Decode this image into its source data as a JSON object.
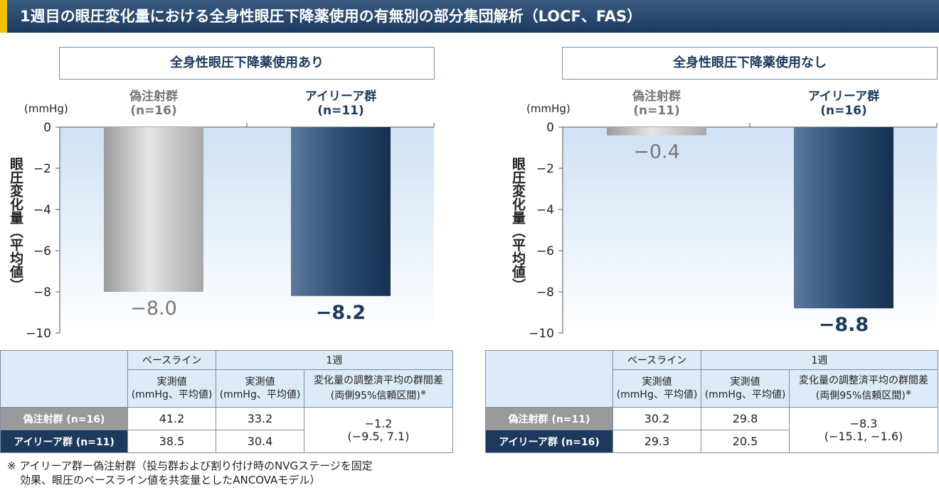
{
  "title": "1週目の眼圧変化量における全身性眼圧下降薬使用の有無別の部分集団解析（LOCF、FAS）",
  "colors": {
    "placebo": "#b8b8b8",
    "drug": "#1d3a5e",
    "title_bg": "#1d3a5e",
    "accent": "#f2c100"
  },
  "panels": [
    {
      "heading": "全身性眼圧下降薬使用あり",
      "unit": "(mmHg)",
      "ylabel": "眼圧変化量（平均値）",
      "groups": [
        {
          "name": "偽注射群",
          "n": "(n=16)",
          "label": "−8.0"
        },
        {
          "name": "アイリーア群",
          "n": "(n=11)",
          "label": "−8.2"
        }
      ],
      "table": {
        "head_baseline": "ベースライン",
        "head_week1": "1週",
        "sub_measured_1": "実測値",
        "sub_measured_2": "(mmHg、平均値)",
        "sub_diff_1": "変化量の調整済平均の群間差",
        "sub_diff_2": "(両側95%信頼区間)",
        "sub_diff_note": "※",
        "rows": [
          {
            "label": "偽注射群 (n=16)",
            "baseline": "41.2",
            "week1": "33.2"
          },
          {
            "label": "アイリーア群 (n=11)",
            "baseline": "38.5",
            "week1": "30.4"
          }
        ],
        "diff": "−1.2",
        "ci": "(−9.5, 7.1)"
      }
    },
    {
      "heading": "全身性眼圧下降薬使用なし",
      "unit": "(mmHg)",
      "ylabel": "眼圧変化量（平均値）",
      "groups": [
        {
          "name": "偽注射群",
          "n": "(n=11)",
          "label": "−0.4"
        },
        {
          "name": "アイリーア群",
          "n": "(n=16)",
          "label": "−8.8"
        }
      ],
      "table": {
        "head_baseline": "ベースライン",
        "head_week1": "1週",
        "sub_measured_1": "実測値",
        "sub_measured_2": "(mmHg、平均値)",
        "sub_diff_1": "変化量の調整済平均の群間差",
        "sub_diff_2": "(両側95%信頼区間)",
        "sub_diff_note": "※",
        "rows": [
          {
            "label": "偽注射群 (n=11)",
            "baseline": "30.2",
            "week1": "29.8"
          },
          {
            "label": "アイリーア群 (n=16)",
            "baseline": "29.3",
            "week1": "20.5"
          }
        ],
        "diff": "−8.3",
        "ci": "(−15.1, −1.6)"
      }
    }
  ],
  "footnote_line1": "※ アイリーア群ー偽注射群（投与群および割り付け時のNVGステージを固定",
  "footnote_line2": "効果、眼圧のベースライン値を共変量としたANCOVAモデル）",
  "chart_data": [
    {
      "type": "bar",
      "title": "全身性眼圧下降薬使用あり",
      "categories": [
        "偽注射群 (n=16)",
        "アイリーア群 (n=11)"
      ],
      "values": [
        -8.0,
        -8.2
      ],
      "ylabel": "眼圧変化量（平均値）(mmHg)",
      "ylim": [
        -10,
        0
      ],
      "yticks": [
        0,
        -2,
        -4,
        -6,
        -8,
        -10
      ],
      "ytick_labels": [
        "0",
        "−2",
        "−4",
        "−6",
        "−8",
        "−10"
      ]
    },
    {
      "type": "bar",
      "title": "全身性眼圧下降薬使用なし",
      "categories": [
        "偽注射群 (n=11)",
        "アイリーア群 (n=16)"
      ],
      "values": [
        -0.4,
        -8.8
      ],
      "ylabel": "眼圧変化量（平均値）(mmHg)",
      "ylim": [
        -10,
        0
      ],
      "yticks": [
        0,
        -2,
        -4,
        -6,
        -8,
        -10
      ],
      "ytick_labels": [
        "0",
        "−2",
        "−4",
        "−6",
        "−8",
        "−10"
      ]
    }
  ]
}
